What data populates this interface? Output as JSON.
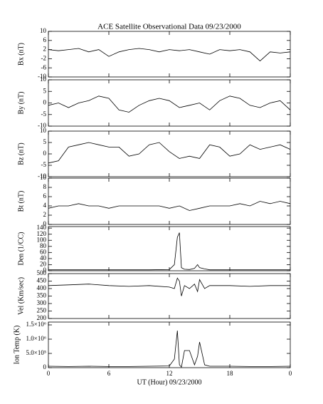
{
  "chart_data": [
    {
      "type": "line",
      "title": "ACE Satellite Observational Data  09/23/2000",
      "ylabel": "Bx (nT)",
      "color": "#000000",
      "x": [
        0,
        1,
        2,
        3,
        4,
        5,
        6,
        7,
        8,
        9,
        10,
        11,
        12,
        13,
        14,
        15,
        16,
        17,
        18,
        19,
        20,
        21,
        22,
        23,
        24
      ],
      "values": [
        2,
        1.5,
        2,
        2.5,
        1,
        2,
        -1,
        1,
        2,
        2.5,
        2,
        1,
        2,
        1.5,
        2,
        1,
        0,
        2,
        1.5,
        2,
        1,
        -3,
        1,
        0.5,
        1
      ],
      "ylim": [
        -10,
        10
      ],
      "yticks": [
        -10,
        -6,
        -2,
        2,
        6,
        10
      ]
    },
    {
      "type": "line",
      "ylabel": "By (nT)",
      "color": "#000000",
      "x": [
        0,
        1,
        2,
        3,
        4,
        5,
        6,
        7,
        8,
        9,
        10,
        11,
        12,
        13,
        14,
        15,
        16,
        17,
        18,
        19,
        20,
        21,
        22,
        23,
        24
      ],
      "values": [
        -1,
        0,
        -2,
        0,
        1,
        3,
        2,
        -3,
        -4,
        -1,
        1,
        2,
        1,
        -2,
        -1,
        0,
        -3,
        1,
        3,
        2,
        -1,
        -2,
        0,
        1,
        -3
      ],
      "ylim": [
        -10,
        10
      ],
      "yticks": [
        -10,
        -5,
        0,
        5,
        10
      ]
    },
    {
      "type": "line",
      "ylabel": "Bz (nT)",
      "color": "#000000",
      "x": [
        0,
        1,
        2,
        3,
        4,
        5,
        6,
        7,
        8,
        9,
        10,
        11,
        12,
        13,
        14,
        15,
        16,
        17,
        18,
        19,
        20,
        21,
        22,
        23,
        24
      ],
      "values": [
        -4,
        -3,
        3,
        4,
        5,
        4,
        3,
        3,
        -1,
        0,
        4,
        5,
        1,
        -2,
        -1,
        -2,
        4,
        3,
        -1,
        0,
        4,
        2,
        3,
        4,
        2
      ],
      "ylim": [
        -10,
        10
      ],
      "yticks": [
        -10,
        -5,
        0,
        5,
        10
      ]
    },
    {
      "type": "line",
      "ylabel": "Bt (nT)",
      "color": "#000000",
      "x": [
        0,
        1,
        2,
        3,
        4,
        5,
        6,
        7,
        8,
        9,
        10,
        11,
        12,
        13,
        14,
        15,
        16,
        17,
        18,
        19,
        20,
        21,
        22,
        23,
        24
      ],
      "values": [
        3.5,
        4,
        4,
        4.5,
        4,
        4,
        3.5,
        4,
        4,
        4,
        4,
        4,
        3.5,
        4,
        3,
        3.5,
        4,
        4,
        4,
        4.5,
        4,
        5,
        4.5,
        5,
        4.5
      ],
      "ylim": [
        0,
        10
      ],
      "yticks": [
        0,
        2,
        4,
        6,
        8,
        10
      ]
    },
    {
      "type": "line",
      "ylabel": "Den (1/CC)",
      "color": "#000000",
      "x": [
        0,
        2,
        4,
        6,
        8,
        10,
        12,
        12.5,
        12.8,
        13,
        13.2,
        13.5,
        14,
        14.5,
        14.8,
        15,
        15.5,
        16,
        18,
        20,
        22,
        24
      ],
      "values": [
        3,
        3,
        3,
        3,
        3,
        3,
        4,
        20,
        110,
        125,
        10,
        5,
        4,
        8,
        20,
        10,
        6,
        3,
        3,
        3,
        3,
        3
      ],
      "ylim": [
        0,
        145
      ],
      "yticks": [
        0,
        20,
        40,
        60,
        80,
        100,
        120,
        140
      ]
    },
    {
      "type": "line",
      "ylabel": "Vel (Km/sec)",
      "color": "#000000",
      "x": [
        0,
        2,
        4,
        6,
        8,
        10,
        12,
        12.5,
        12.8,
        13,
        13.2,
        13.5,
        14,
        14.5,
        14.8,
        15,
        15.5,
        16,
        18,
        20,
        22,
        24
      ],
      "values": [
        420,
        425,
        430,
        420,
        415,
        420,
        410,
        400,
        470,
        450,
        350,
        420,
        400,
        430,
        380,
        460,
        400,
        420,
        420,
        415,
        420,
        420
      ],
      "ylim": [
        200,
        500
      ],
      "yticks": [
        200,
        250,
        300,
        350,
        400,
        450,
        500
      ]
    },
    {
      "type": "line",
      "ylabel": "Ion Temp (K)",
      "xlabel": "UT (Hour)  09/23/2000",
      "color": "#000000",
      "x": [
        0,
        2,
        4,
        6,
        8,
        10,
        12,
        12.5,
        12.8,
        13,
        13.2,
        13.5,
        14,
        14.5,
        14.8,
        15,
        15.5,
        16,
        18,
        20,
        22,
        24
      ],
      "values": [
        50000,
        40000,
        50000,
        40000,
        40000,
        50000,
        60000,
        300000,
        1300000,
        100000,
        20000,
        600000,
        600000,
        100000,
        400000,
        900000,
        100000,
        50000,
        50000,
        40000,
        40000,
        50000
      ],
      "ylim": [
        0,
        1600000
      ],
      "yticks": [
        0,
        {
          "value": 500000,
          "label": "5.0×10⁵"
        },
        {
          "value": 1000000,
          "label": "1.0×10⁶"
        },
        {
          "value": 1500000,
          "label": "1.5×10⁶"
        }
      ],
      "xlim": [
        0,
        24
      ],
      "xticks": [
        0,
        6,
        12,
        18,
        {
          "value": 24,
          "label": "0"
        }
      ]
    }
  ]
}
